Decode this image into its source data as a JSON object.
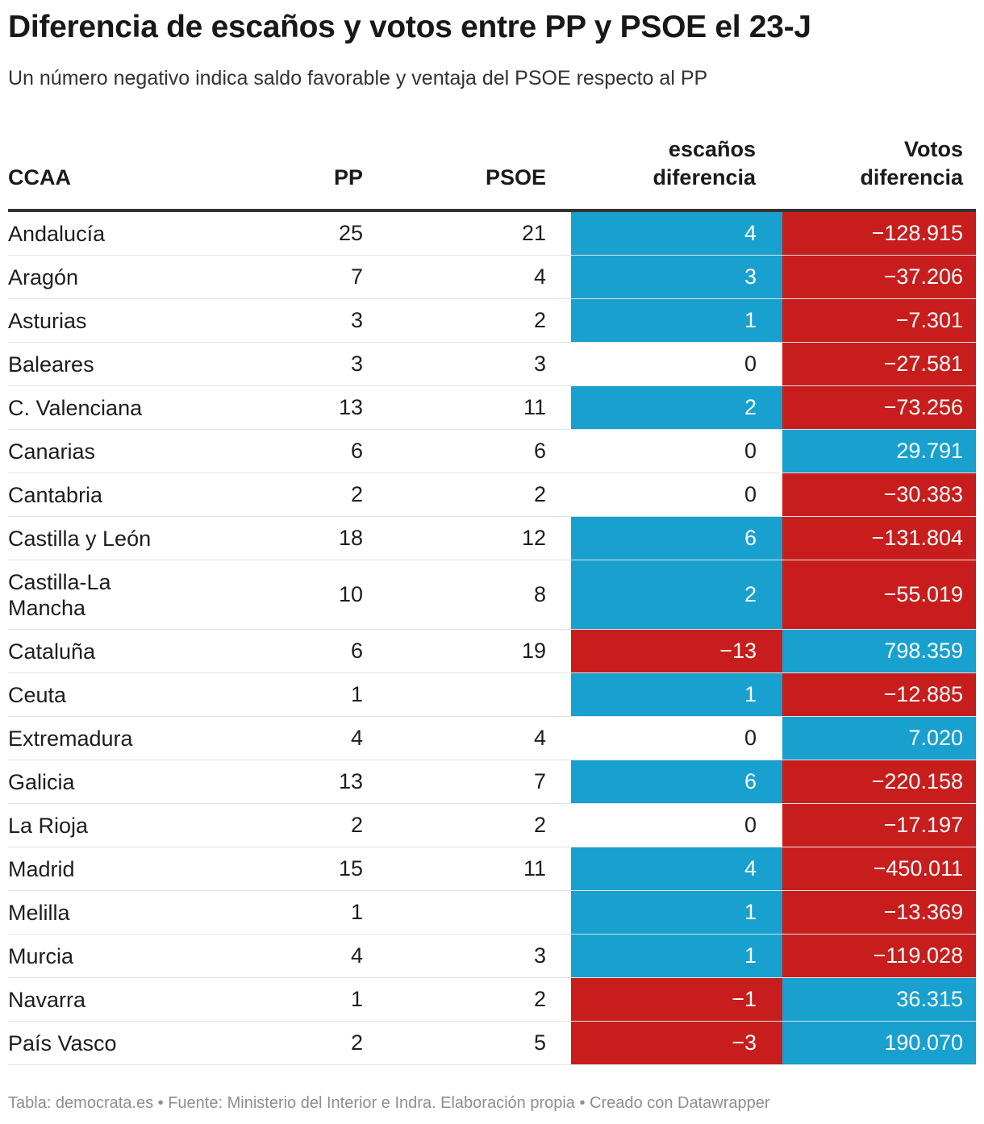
{
  "title": "Diferencia de escaños y votos entre PP y PSOE el 23-J",
  "subtitle": "Un número negativo indica saldo favorable y ventaja del PSOE respecto al PP",
  "footer": "Tabla: democrata.es • Fuente: Ministerio del Interior e Indra. Elaboración propia • Creado con Datawrapper",
  "colors": {
    "positive": "#18a0cf",
    "negative": "#c71e1d",
    "rule": "#333333"
  },
  "chart_data": {
    "type": "table",
    "title": "Diferencia de escaños y votos entre PP y PSOE el 23-J",
    "subtitle": "Un número negativo indica saldo favorable y ventaja del PSOE respecto al PP",
    "columns": [
      {
        "key": "ccaa",
        "lines": [
          "CCAA"
        ]
      },
      {
        "key": "pp",
        "lines": [
          "PP"
        ]
      },
      {
        "key": "psoe",
        "lines": [
          "PSOE"
        ]
      },
      {
        "key": "esc",
        "lines": [
          "escaños",
          "diferencia"
        ]
      },
      {
        "key": "vot",
        "lines": [
          "Votos",
          "diferencia"
        ]
      }
    ],
    "rows": [
      {
        "ccaa": "Andalucía",
        "pp": "25",
        "psoe": "21",
        "esc": "4",
        "vot": "−128.915"
      },
      {
        "ccaa": "Aragón",
        "pp": "7",
        "psoe": "4",
        "esc": "3",
        "vot": "−37.206"
      },
      {
        "ccaa": "Asturias",
        "pp": "3",
        "psoe": "2",
        "esc": "1",
        "vot": "−7.301"
      },
      {
        "ccaa": "Baleares",
        "pp": "3",
        "psoe": "3",
        "esc": "0",
        "vot": "−27.581"
      },
      {
        "ccaa": "C. Valenciana",
        "pp": "13",
        "psoe": "11",
        "esc": "2",
        "vot": "−73.256"
      },
      {
        "ccaa": "Canarias",
        "pp": "6",
        "psoe": "6",
        "esc": "0",
        "vot": "29.791"
      },
      {
        "ccaa": "Cantabria",
        "pp": "2",
        "psoe": "2",
        "esc": "0",
        "vot": "−30.383"
      },
      {
        "ccaa": "Castilla y León",
        "pp": "18",
        "psoe": "12",
        "esc": "6",
        "vot": "−131.804"
      },
      {
        "ccaa": "Castilla-La Mancha",
        "pp": "10",
        "psoe": "8",
        "esc": "2",
        "vot": "−55.019"
      },
      {
        "ccaa": "Cataluña",
        "pp": "6",
        "psoe": "19",
        "esc": "−13",
        "vot": "798.359"
      },
      {
        "ccaa": "Ceuta",
        "pp": "1",
        "psoe": "",
        "esc": "1",
        "vot": "−12.885"
      },
      {
        "ccaa": "Extremadura",
        "pp": "4",
        "psoe": "4",
        "esc": "0",
        "vot": "7.020"
      },
      {
        "ccaa": "Galicia",
        "pp": "13",
        "psoe": "7",
        "esc": "6",
        "vot": "−220.158"
      },
      {
        "ccaa": "La Rioja",
        "pp": "2",
        "psoe": "2",
        "esc": "0",
        "vot": "−17.197"
      },
      {
        "ccaa": "Madrid",
        "pp": "15",
        "psoe": "11",
        "esc": "4",
        "vot": "−450.011"
      },
      {
        "ccaa": "Melilla",
        "pp": "1",
        "psoe": "",
        "esc": "1",
        "vot": "−13.369"
      },
      {
        "ccaa": "Murcia",
        "pp": "4",
        "psoe": "3",
        "esc": "1",
        "vot": "−119.028"
      },
      {
        "ccaa": "Navarra",
        "pp": "1",
        "psoe": "2",
        "esc": "−1",
        "vot": "36.315"
      },
      {
        "ccaa": "País Vasco",
        "pp": "2",
        "psoe": "5",
        "esc": "−3",
        "vot": "190.070"
      }
    ]
  }
}
